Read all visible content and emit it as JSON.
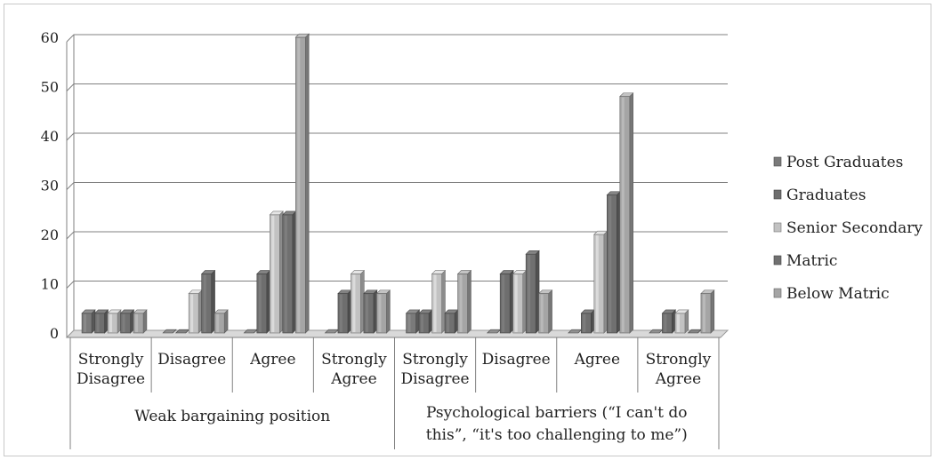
{
  "chart_data": {
    "type": "bar",
    "title": "",
    "xlabel": "",
    "ylabel": "",
    "ylim": [
      0,
      60
    ],
    "yticks": [
      "0",
      "10",
      "20",
      "30",
      "40",
      "50",
      "60"
    ],
    "grid": true,
    "legend_position": "right",
    "groups": [
      {
        "label": "Weak bargaining position",
        "categories": [
          "Strongly Disagree",
          "Disagree",
          "Agree",
          "Strongly Agree"
        ]
      },
      {
        "label": "Psychological barriers (“I can't do this”, “it's too challenging to me”)",
        "categories": [
          "Strongly Disagree",
          "Disagree",
          "Agree",
          "Strongly Agree"
        ]
      }
    ],
    "series": [
      {
        "name": "Post Graduates",
        "color": "#7a7a7a",
        "values": [
          4,
          0,
          0,
          0,
          4,
          0,
          0,
          0
        ]
      },
      {
        "name": "Graduates",
        "color": "#6e6e6e",
        "values": [
          4,
          0,
          12,
          8,
          4,
          12,
          4,
          4
        ]
      },
      {
        "name": "Senior Secondary",
        "color": "#c2c2c2",
        "values": [
          4,
          8,
          24,
          12,
          12,
          12,
          20,
          4
        ]
      },
      {
        "name": "Matric",
        "color": "#707070",
        "values": [
          4,
          12,
          24,
          8,
          4,
          16,
          28,
          0
        ]
      },
      {
        "name": "Below Matric",
        "color": "#a5a5a5",
        "values": [
          4,
          4,
          60,
          8,
          12,
          8,
          48,
          8
        ]
      }
    ]
  }
}
